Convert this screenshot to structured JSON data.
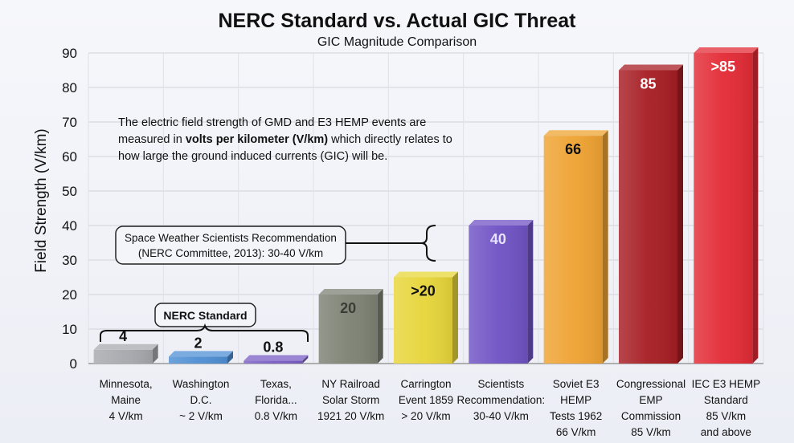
{
  "chart_data": {
    "type": "bar",
    "title": "NERC Standard vs. Actual GIC Threat",
    "subtitle": "GIC Magnitude Comparison",
    "ylabel": "Field Strength (V/km)",
    "ylim": [
      0,
      90
    ],
    "yticks": [
      0,
      10,
      20,
      30,
      40,
      50,
      60,
      70,
      80,
      90
    ],
    "grid": true,
    "categories": [
      [
        "Minnesota,",
        "Maine",
        "4 V/km"
      ],
      [
        "Washington",
        "D.C.",
        "~ 2 V/km"
      ],
      [
        "Texas,",
        "Florida...",
        "0.8 V/km"
      ],
      [
        "NY Railroad",
        "Solar Storm",
        "1921 20 V/km"
      ],
      [
        "Carrington",
        "Event 1859",
        "> 20 V/km"
      ],
      [
        "Scientists",
        "Recommendation:",
        "30-40 V/km"
      ],
      [
        "Soviet E3",
        "HEMP",
        "Tests 1962",
        "66 V/km"
      ],
      [
        "Congressional",
        "EMP",
        "Commission",
        "85 V/km"
      ],
      [
        "IEC E3 HEMP",
        "Standard",
        "85 V/km",
        "and above"
      ]
    ],
    "values": [
      4,
      2,
      0.8,
      20,
      25,
      40,
      66,
      85,
      90
    ],
    "value_labels": [
      "4",
      "2",
      "0.8",
      "20",
      ">20",
      "40",
      "66",
      "85",
      ">85"
    ],
    "bar_colors": [
      "#a7a9ae",
      "#4f8fd4",
      "#7a5ec4",
      "#7d8274",
      "#e7d53a",
      "#6f53c4",
      "#efa332",
      "#a61e24",
      "#e32b36"
    ],
    "value_label_colors": [
      "#111111",
      "#111111",
      "#111111",
      "#3a3d34",
      "#111111",
      "#e7e3ff",
      "#111111",
      "#ffffff",
      "#ffffff"
    ],
    "annotations": {
      "note_lines": [
        "The electric field strength of GMD and E3 HEMP events are",
        [
          "measured in ",
          "volts per kilometer (V/km)",
          " which directly relates to"
        ],
        "how large the ground induced currents (GIC) will be."
      ],
      "recommendation_box": [
        "Space Weather Scientists Recommendation",
        "(NERC Committee, 2013): 30-40 V/km"
      ],
      "nerc_standard_label": "NERC Standard"
    }
  }
}
